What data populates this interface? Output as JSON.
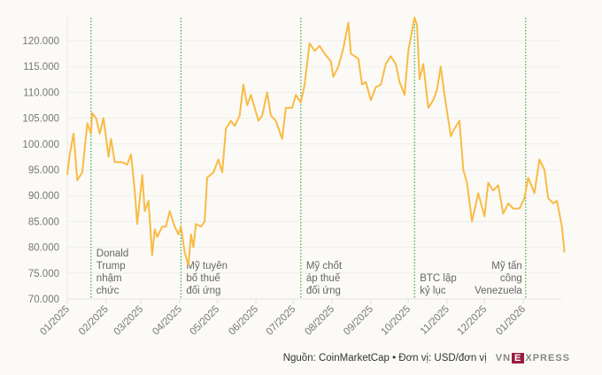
{
  "chart_data": {
    "type": "line",
    "title": "",
    "xlabel": "",
    "ylabel": "",
    "ylim": [
      70000,
      125000
    ],
    "yticks": [
      70000,
      75000,
      80000,
      85000,
      90000,
      95000,
      100000,
      105000,
      110000,
      115000,
      120000
    ],
    "ytick_labels": [
      "70.000",
      "75.000",
      "80.000",
      "85.000",
      "90.000",
      "95.000",
      "100.000",
      "105.000",
      "110.000",
      "115.000",
      "120.000"
    ],
    "xticks": [
      "2025-01-01",
      "2025-02-01",
      "2025-03-01",
      "2025-04-01",
      "2025-05-01",
      "2025-06-01",
      "2025-07-01",
      "2025-08-01",
      "2025-09-01",
      "2025-10-01",
      "2025-11-01",
      "2025-12-01",
      "2026-01-01"
    ],
    "xtick_labels": [
      "01/2025",
      "02/2025",
      "03/2025",
      "04/2025",
      "05/2025",
      "06/2025",
      "07/2025",
      "08/2025",
      "09/2025",
      "10/2025",
      "11/2025",
      "12/2025",
      "01/2026"
    ],
    "grid": "horizontal",
    "line_color": "#f9bb45",
    "marker_color": "#3aa845",
    "series": [
      {
        "x": [
          "2025-01-01",
          "2025-01-03",
          "2025-01-06",
          "2025-01-09",
          "2025-01-13",
          "2025-01-17",
          "2025-01-20",
          "2025-01-21",
          "2025-01-24",
          "2025-01-27",
          "2025-01-30",
          "2025-02-03",
          "2025-02-05",
          "2025-02-08",
          "2025-02-14",
          "2025-02-18",
          "2025-02-21",
          "2025-02-24",
          "2025-02-26",
          "2025-03-02",
          "2025-03-04",
          "2025-03-07",
          "2025-03-10",
          "2025-03-12",
          "2025-03-14",
          "2025-03-18",
          "2025-03-21",
          "2025-03-24",
          "2025-03-28",
          "2025-03-31",
          "2025-04-02",
          "2025-04-05",
          "2025-04-08",
          "2025-04-10",
          "2025-04-12",
          "2025-04-14",
          "2025-04-18",
          "2025-04-21",
          "2025-04-23",
          "2025-04-28",
          "2025-05-02",
          "2025-05-05",
          "2025-05-08",
          "2025-05-12",
          "2025-05-15",
          "2025-05-19",
          "2025-05-22",
          "2025-05-25",
          "2025-05-28",
          "2025-06-03",
          "2025-06-06",
          "2025-06-10",
          "2025-06-13",
          "2025-06-17",
          "2025-06-22",
          "2025-06-25",
          "2025-06-30",
          "2025-07-03",
          "2025-07-07",
          "2025-07-10",
          "2025-07-14",
          "2025-07-18",
          "2025-07-22",
          "2025-07-26",
          "2025-07-31",
          "2025-08-02",
          "2025-08-06",
          "2025-08-10",
          "2025-08-14",
          "2025-08-16",
          "2025-08-22",
          "2025-08-25",
          "2025-08-28",
          "2025-09-01",
          "2025-09-05",
          "2025-09-09",
          "2025-09-13",
          "2025-09-17",
          "2025-09-21",
          "2025-09-24",
          "2025-09-28",
          "2025-10-01",
          "2025-10-06",
          "2025-10-08",
          "2025-10-10",
          "2025-10-13",
          "2025-10-17",
          "2025-10-21",
          "2025-10-24",
          "2025-10-27",
          "2025-10-30",
          "2025-11-04",
          "2025-11-07",
          "2025-11-11",
          "2025-11-14",
          "2025-11-17",
          "2025-11-21",
          "2025-11-26",
          "2025-12-01",
          "2025-12-04",
          "2025-12-08",
          "2025-12-12",
          "2025-12-16",
          "2025-12-20",
          "2025-12-24",
          "2025-12-29",
          "2026-01-02",
          "2026-01-05",
          "2026-01-10",
          "2026-01-14",
          "2026-01-18",
          "2026-01-21",
          "2026-01-25",
          "2026-01-28",
          "2026-02-01",
          "2026-02-03"
        ],
        "y": [
          94000,
          98000,
          102000,
          93000,
          94500,
          104000,
          102000,
          106000,
          105000,
          102000,
          105000,
          97500,
          101000,
          96500,
          96500,
          96000,
          98000,
          91000,
          84500,
          94000,
          87000,
          89000,
          78500,
          83500,
          82000,
          84000,
          84000,
          87000,
          84000,
          82500,
          84000,
          79000,
          76500,
          82500,
          80000,
          84500,
          84000,
          85000,
          93500,
          94500,
          97000,
          94500,
          103000,
          104500,
          103500,
          105500,
          111500,
          107500,
          109500,
          104500,
          105500,
          110000,
          105500,
          104500,
          101000,
          107000,
          107000,
          109500,
          108000,
          111500,
          119500,
          118000,
          119000,
          117500,
          116000,
          113000,
          115000,
          118500,
          123500,
          117500,
          116500,
          111500,
          112000,
          108500,
          111000,
          111500,
          115500,
          117000,
          115500,
          112000,
          109500,
          118000,
          124500,
          123000,
          112500,
          115500,
          107000,
          108500,
          110500,
          115000,
          109500,
          101500,
          103000,
          104500,
          95000,
          92500,
          85000,
          90500,
          86000,
          92500,
          91000,
          92000,
          86500,
          88500,
          87500,
          87500,
          89500,
          93500,
          90500,
          97000,
          95000,
          89500,
          88500,
          89000,
          84000,
          79000
        ]
      }
    ],
    "annotations": [
      {
        "date": "2025-01-20",
        "lines": [
          "Donald",
          "Trump",
          "nhậm",
          "chức"
        ],
        "align": "right-of-line"
      },
      {
        "date": "2025-04-02",
        "lines": [
          "Mỹ tuyên",
          "bố thuế",
          "đối ứng"
        ],
        "align": "right-of-line"
      },
      {
        "date": "2025-07-07",
        "lines": [
          "Mỹ chốt",
          "áp thuế",
          "đối ứng"
        ],
        "align": "right-of-line"
      },
      {
        "date": "2025-10-06",
        "lines": [
          "BTC lập",
          "kỷ lục"
        ],
        "align": "right-of-line"
      },
      {
        "date": "2026-01-03",
        "lines": [
          "Mỹ tấn",
          "công",
          "Venezuela"
        ],
        "align": "left-of-line"
      }
    ]
  },
  "footer": {
    "source": "Nguồn: CoinMarketCap • Đơn vị: USD/đơn vị",
    "logo": {
      "left": "VN",
      "mark": "E",
      "right": "XPRESS"
    }
  }
}
